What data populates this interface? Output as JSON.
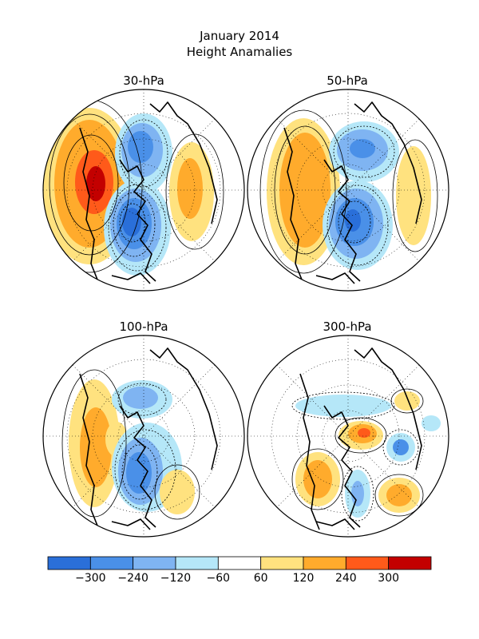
{
  "header": {
    "title": "January 2014",
    "subtitle": "Height Anamalies"
  },
  "panels": [
    {
      "label": "30-hPa"
    },
    {
      "label": "50-hPa"
    },
    {
      "label": "100-hPa"
    },
    {
      "label": "300-hPa"
    }
  ],
  "colorbar": {
    "colors": [
      "#2a6fd9",
      "#4a90e8",
      "#7fb4f2",
      "#b5e7f8",
      "#ffffff",
      "#ffe27f",
      "#ffab2c",
      "#ff5a1a",
      "#c30000"
    ],
    "labels": [
      "−300",
      "−240",
      "−120",
      "−60",
      "60",
      "120",
      "240",
      "300"
    ]
  }
}
